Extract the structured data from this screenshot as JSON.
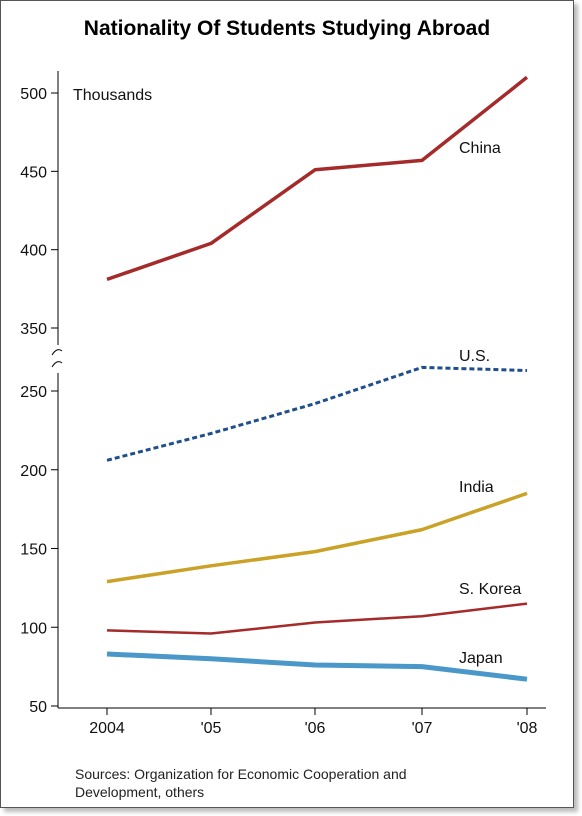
{
  "title": "Nationality Of Students Studying Abroad",
  "unit_label": "Thousands",
  "sources": [
    "Sources: Organization for Economic Cooperation and",
    "Development, others"
  ],
  "chart_data": {
    "type": "line",
    "title": "Nationality Of Students Studying Abroad",
    "ylabel": "Thousands",
    "categories": [
      "2004",
      "'05",
      "'06",
      "'07",
      "'08"
    ],
    "y_axis_broken": true,
    "upper_segment": {
      "ylim": [
        330,
        520
      ],
      "ticks": [
        350,
        400,
        450,
        500
      ]
    },
    "lower_segment": {
      "ylim": [
        50,
        262
      ],
      "ticks": [
        50,
        100,
        150,
        200,
        250
      ]
    },
    "grid": false,
    "series": [
      {
        "name": "China",
        "segment": "upper",
        "color": "#a52a2a",
        "style": "solid",
        "values": [
          381,
          404,
          451,
          457,
          510
        ]
      },
      {
        "name": "U.S.",
        "segment": "lower",
        "color": "#1f4e8c",
        "style": "dashed",
        "values": [
          206,
          223,
          242,
          265,
          263
        ]
      },
      {
        "name": "India",
        "segment": "lower",
        "color": "#c9a227",
        "style": "solid",
        "values": [
          129,
          139,
          148,
          162,
          185
        ]
      },
      {
        "name": "S. Korea",
        "segment": "lower",
        "color": "#a52a2a",
        "style": "solid-thin",
        "values": [
          98,
          96,
          103,
          107,
          115
        ]
      },
      {
        "name": "Japan",
        "segment": "lower",
        "color": "#4a97c9",
        "style": "solid-thick",
        "values": [
          83,
          80,
          76,
          75,
          67
        ]
      }
    ]
  }
}
